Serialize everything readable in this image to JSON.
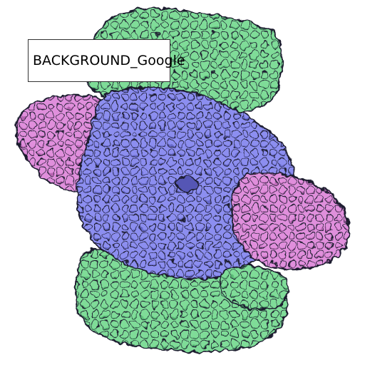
{
  "image": {
    "subject": "molecular-protein-illustration",
    "colors": {
      "outline": "#1a1a2e",
      "green_fill": "#7fdc98",
      "green_shadow": "#56b873",
      "blue_fill": "#8c8ef0",
      "blue_shadow": "#6466c8",
      "pink_fill": "#e08fdc",
      "pink_shadow": "#b564b0",
      "background": "#ffffff"
    }
  },
  "label": {
    "text": "BACKGROUND_Google"
  }
}
